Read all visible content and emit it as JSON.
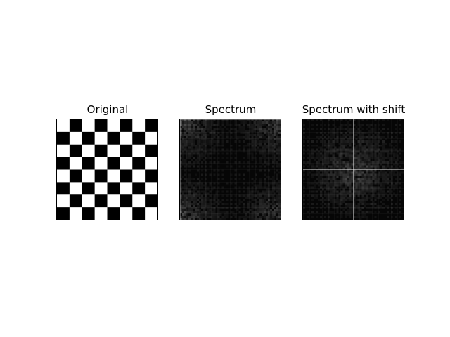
{
  "figure": {
    "panels": [
      {
        "title": "Original",
        "content": "checkerboard",
        "grid_size": 8,
        "colors": {
          "dark": "#000000",
          "light": "#ffffff"
        }
      },
      {
        "title": "Spectrum",
        "content": "frequency-spectrum",
        "colors": {
          "background": "#060606",
          "highlight": "#d0d0d0"
        }
      },
      {
        "title": "Spectrum with shift",
        "content": "frequency-spectrum-shifted",
        "colors": {
          "background": "#060606",
          "highlight": "#ffffff"
        }
      }
    ]
  }
}
